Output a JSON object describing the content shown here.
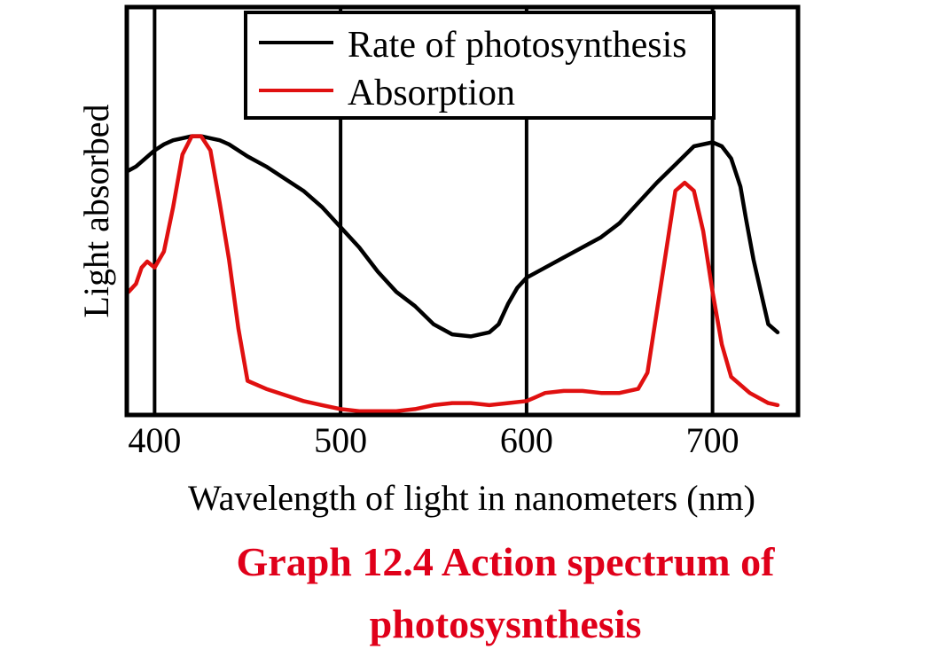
{
  "chart_data": {
    "type": "line",
    "title": "",
    "xlabel": "Wavelength of light in nanometers (nm)",
    "ylabel": "Light absorbed",
    "xlim": [
      386,
      745
    ],
    "ylim": [
      0,
      100
    ],
    "xticks": [
      400,
      500,
      600,
      700
    ],
    "vertical_grid": [
      400,
      500,
      600,
      700
    ],
    "legend_position": "top-center",
    "series": [
      {
        "name": "Rate of photosynthesis",
        "color": "#000000",
        "points": [
          [
            386,
            60
          ],
          [
            390,
            61
          ],
          [
            395,
            63
          ],
          [
            400,
            65
          ],
          [
            405,
            66.5
          ],
          [
            410,
            67.5
          ],
          [
            415,
            68
          ],
          [
            420,
            68.5
          ],
          [
            425,
            68.5
          ],
          [
            430,
            68
          ],
          [
            435,
            67.5
          ],
          [
            440,
            66.5
          ],
          [
            445,
            65
          ],
          [
            450,
            63.5
          ],
          [
            460,
            61
          ],
          [
            470,
            58
          ],
          [
            480,
            55
          ],
          [
            490,
            51
          ],
          [
            500,
            46
          ],
          [
            510,
            41
          ],
          [
            520,
            35
          ],
          [
            530,
            30
          ],
          [
            540,
            26.5
          ],
          [
            550,
            22
          ],
          [
            560,
            19.5
          ],
          [
            570,
            19
          ],
          [
            580,
            20
          ],
          [
            585,
            22
          ],
          [
            590,
            27
          ],
          [
            595,
            31
          ],
          [
            600,
            33.5
          ],
          [
            610,
            36
          ],
          [
            620,
            38.5
          ],
          [
            630,
            41
          ],
          [
            640,
            43.5
          ],
          [
            650,
            47
          ],
          [
            660,
            52
          ],
          [
            670,
            57
          ],
          [
            680,
            61.5
          ],
          [
            690,
            66
          ],
          [
            700,
            67
          ],
          [
            705,
            66
          ],
          [
            710,
            63
          ],
          [
            715,
            56
          ],
          [
            718,
            48
          ],
          [
            722,
            38
          ],
          [
            726,
            30
          ],
          [
            730,
            22
          ],
          [
            735,
            20
          ]
        ]
      },
      {
        "name": "Absorption",
        "color": "#e01010",
        "points": [
          [
            386,
            30
          ],
          [
            390,
            32
          ],
          [
            393,
            36
          ],
          [
            396,
            37.5
          ],
          [
            400,
            36
          ],
          [
            405,
            40
          ],
          [
            410,
            51
          ],
          [
            415,
            64
          ],
          [
            420,
            68.5
          ],
          [
            425,
            68.5
          ],
          [
            430,
            65
          ],
          [
            435,
            52
          ],
          [
            440,
            38
          ],
          [
            445,
            21
          ],
          [
            450,
            8
          ],
          [
            460,
            6
          ],
          [
            470,
            4.5
          ],
          [
            480,
            3
          ],
          [
            490,
            2
          ],
          [
            500,
            1
          ],
          [
            510,
            0.5
          ],
          [
            520,
            0.5
          ],
          [
            530,
            0.5
          ],
          [
            540,
            1
          ],
          [
            550,
            2
          ],
          [
            560,
            2.5
          ],
          [
            570,
            2.5
          ],
          [
            580,
            2
          ],
          [
            590,
            2.5
          ],
          [
            600,
            3
          ],
          [
            605,
            4
          ],
          [
            610,
            5
          ],
          [
            620,
            5.5
          ],
          [
            630,
            5.5
          ],
          [
            640,
            5
          ],
          [
            650,
            5
          ],
          [
            660,
            6
          ],
          [
            665,
            10
          ],
          [
            670,
            25
          ],
          [
            675,
            40
          ],
          [
            680,
            55
          ],
          [
            685,
            57
          ],
          [
            690,
            55
          ],
          [
            695,
            45
          ],
          [
            700,
            30
          ],
          [
            705,
            17
          ],
          [
            710,
            9
          ],
          [
            720,
            5
          ],
          [
            730,
            2.5
          ],
          [
            735,
            2
          ]
        ]
      }
    ]
  },
  "caption": {
    "line1": "Graph 12.4 Action spectrum of",
    "line2": "photosysnthesis",
    "color": "#e0001a"
  }
}
